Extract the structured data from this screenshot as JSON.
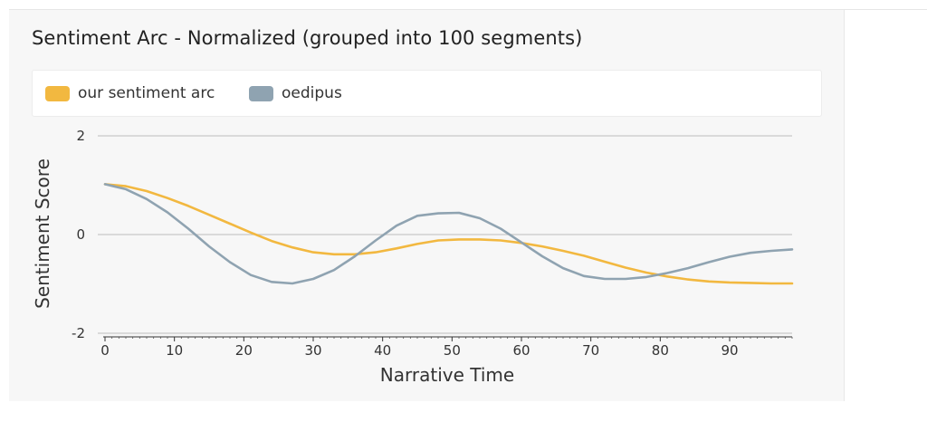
{
  "chart_data": {
    "type": "line",
    "title": "Sentiment Arc - Normalized (grouped into 100 segments)",
    "xlabel": "Narrative Time",
    "ylabel": "Sentiment Score",
    "xlim": [
      0,
      99
    ],
    "ylim": [
      -2,
      2
    ],
    "x_ticks": [
      "0",
      "10",
      "20",
      "30",
      "40",
      "50",
      "60",
      "70",
      "80",
      "90"
    ],
    "y_ticks": [
      "2",
      "0",
      "-2"
    ],
    "grid": "horizontal",
    "legend_position": "top",
    "series": [
      {
        "name": "our sentiment arc",
        "color": "#f2b840",
        "x": [
          0,
          3,
          6,
          9,
          12,
          15,
          18,
          21,
          24,
          27,
          30,
          33,
          36,
          39,
          42,
          45,
          48,
          51,
          54,
          57,
          60,
          63,
          66,
          69,
          72,
          75,
          78,
          81,
          84,
          87,
          90,
          93,
          96,
          99
        ],
        "y": [
          1.02,
          0.98,
          0.88,
          0.74,
          0.58,
          0.4,
          0.22,
          0.04,
          -0.13,
          -0.26,
          -0.36,
          -0.4,
          -0.4,
          -0.36,
          -0.28,
          -0.19,
          -0.12,
          -0.1,
          -0.1,
          -0.12,
          -0.17,
          -0.24,
          -0.33,
          -0.43,
          -0.55,
          -0.67,
          -0.77,
          -0.85,
          -0.91,
          -0.95,
          -0.97,
          -0.98,
          -0.99,
          -0.99
        ]
      },
      {
        "name": "oedipus",
        "color": "#8fa3b1",
        "x": [
          0,
          3,
          6,
          9,
          12,
          15,
          18,
          21,
          24,
          27,
          30,
          33,
          36,
          39,
          42,
          45,
          48,
          51,
          54,
          57,
          60,
          63,
          66,
          69,
          72,
          75,
          78,
          81,
          84,
          87,
          90,
          93,
          96,
          99
        ],
        "y": [
          1.02,
          0.92,
          0.72,
          0.45,
          0.12,
          -0.24,
          -0.56,
          -0.82,
          -0.96,
          -0.99,
          -0.9,
          -0.72,
          -0.44,
          -0.12,
          0.18,
          0.38,
          0.43,
          0.44,
          0.33,
          0.12,
          -0.16,
          -0.44,
          -0.68,
          -0.84,
          -0.9,
          -0.9,
          -0.86,
          -0.78,
          -0.68,
          -0.56,
          -0.45,
          -0.37,
          -0.33,
          -0.3
        ]
      }
    ]
  }
}
